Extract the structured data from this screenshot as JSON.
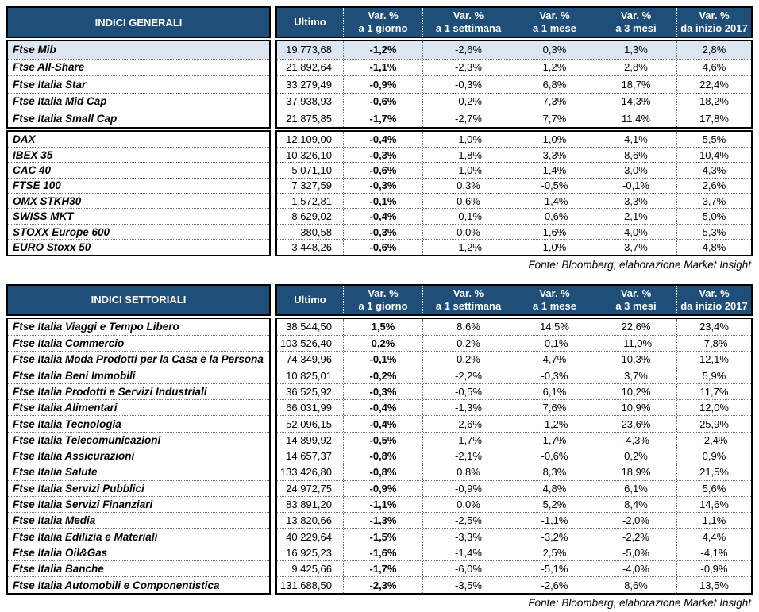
{
  "colors": {
    "header_bg": "#1F4E79",
    "header_text": "#FFFFFF",
    "highlight_row_bg": "#DCE6F1",
    "grid_dotted": "#6E6E6E",
    "border": "#000000"
  },
  "columns": {
    "ultimo_label": "Ultimo",
    "var_columns": [
      {
        "top": "Var. %",
        "bottom": "a 1 giorno"
      },
      {
        "top": "Var. %",
        "bottom": "a 1 settimana"
      },
      {
        "top": "Var. %",
        "bottom": "a 1 mese"
      },
      {
        "top": "Var. %",
        "bottom": "a 3 mesi"
      },
      {
        "top": "Var. %",
        "bottom": "da inizio 2017"
      }
    ]
  },
  "tables": [
    {
      "title": "INDICI GENERALI",
      "source": "Fonte: Bloomberg, elaborazione Market Insight",
      "groups": [
        {
          "rows": [
            {
              "name": "Ftse Mib",
              "ultimo": "19.773,68",
              "values": [
                "-1,2%",
                "-2,6%",
                "0,3%",
                "1,3%",
                "2,8%"
              ],
              "highlight": true
            },
            {
              "name": "Ftse All-Share",
              "ultimo": "21.892,64",
              "values": [
                "-1,1%",
                "-2,3%",
                "1,2%",
                "2,8%",
                "4,6%"
              ],
              "highlight": false
            },
            {
              "name": "Ftse Italia Star",
              "ultimo": "33.279,49",
              "values": [
                "-0,9%",
                "-0,3%",
                "6,8%",
                "18,7%",
                "22,4%"
              ],
              "highlight": false
            },
            {
              "name": "Ftse Italia Mid Cap",
              "ultimo": "37.938,93",
              "values": [
                "-0,6%",
                "-0,2%",
                "7,3%",
                "14,3%",
                "18,2%"
              ],
              "highlight": false
            },
            {
              "name": "Ftse Italia Small Cap",
              "ultimo": "21.875,85",
              "values": [
                "-1,7%",
                "-2,7%",
                "7,7%",
                "11,4%",
                "17,8%"
              ],
              "highlight": false
            }
          ]
        },
        {
          "rows": [
            {
              "name": "DAX",
              "ultimo": "12.109,00",
              "values": [
                "-0,4%",
                "-1,0%",
                "1,0%",
                "4,1%",
                "5,5%"
              ],
              "highlight": false
            },
            {
              "name": "IBEX 35",
              "ultimo": "10.326,10",
              "values": [
                "-0,3%",
                "-1,8%",
                "3,3%",
                "8,6%",
                "10,4%"
              ],
              "highlight": false
            },
            {
              "name": "CAC 40",
              "ultimo": "5.071,10",
              "values": [
                "-0,6%",
                "-1,0%",
                "1,4%",
                "3,0%",
                "4,3%"
              ],
              "highlight": false
            },
            {
              "name": "FTSE 100",
              "ultimo": "7.327,59",
              "values": [
                "-0,3%",
                "0,3%",
                "-0,5%",
                "-0,1%",
                "2,6%"
              ],
              "highlight": false
            },
            {
              "name": "OMX STKH30",
              "ultimo": "1.572,81",
              "values": [
                "-0,1%",
                "0,6%",
                "-1,4%",
                "3,3%",
                "3,7%"
              ],
              "highlight": false
            },
            {
              "name": "SWISS MKT",
              "ultimo": "8.629,02",
              "values": [
                "-0,4%",
                "-0,1%",
                "-0,6%",
                "2,1%",
                "5,0%"
              ],
              "highlight": false
            },
            {
              "name": "STOXX Europe 600",
              "ultimo": "380,58",
              "values": [
                "-0,3%",
                "0,0%",
                "1,6%",
                "4,0%",
                "5,3%"
              ],
              "highlight": false
            },
            {
              "name": "EURO Stoxx 50",
              "ultimo": "3.448,26",
              "values": [
                "-0,6%",
                "-1,2%",
                "1,0%",
                "3,7%",
                "4,8%"
              ],
              "highlight": false
            }
          ]
        }
      ]
    },
    {
      "title": "INDICI SETTORIALI",
      "source": "Fonte: Bloomberg, elaborazione Market Insight",
      "groups": [
        {
          "rows": [
            {
              "name": "Ftse Italia Viaggi e Tempo Libero",
              "ultimo": "38.544,50",
              "values": [
                "1,5%",
                "8,6%",
                "14,5%",
                "22,6%",
                "23,4%"
              ],
              "highlight": false
            },
            {
              "name": "Ftse Italia Commercio",
              "ultimo": "103.526,40",
              "values": [
                "0,2%",
                "0,2%",
                "-0,1%",
                "-11,0%",
                "-7,8%"
              ],
              "highlight": false
            },
            {
              "name": "Ftse Italia Moda Prodotti per la Casa e la Persona",
              "ultimo": "74.349,96",
              "values": [
                "-0,1%",
                "0,2%",
                "4,7%",
                "10,3%",
                "12,1%"
              ],
              "highlight": false
            },
            {
              "name": "Ftse Italia Beni Immobili",
              "ultimo": "10.825,01",
              "values": [
                "-0,2%",
                "-2,2%",
                "-0,3%",
                "3,7%",
                "5,9%"
              ],
              "highlight": false
            },
            {
              "name": "Ftse Italia Prodotti e Servizi Industriali",
              "ultimo": "36.525,92",
              "values": [
                "-0,3%",
                "-0,5%",
                "6,1%",
                "10,2%",
                "11,7%"
              ],
              "highlight": false
            },
            {
              "name": "Ftse Italia Alimentari",
              "ultimo": "66.031,99",
              "values": [
                "-0,4%",
                "-1,3%",
                "7,6%",
                "10,9%",
                "12,0%"
              ],
              "highlight": false
            },
            {
              "name": "Ftse Italia Tecnologia",
              "ultimo": "52.096,15",
              "values": [
                "-0,4%",
                "-2,6%",
                "-1,2%",
                "23,6%",
                "25,9%"
              ],
              "highlight": false
            },
            {
              "name": "Ftse Italia Telecomunicazioni",
              "ultimo": "14.899,92",
              "values": [
                "-0,5%",
                "-1,7%",
                "1,7%",
                "-4,3%",
                "-2,4%"
              ],
              "highlight": false
            },
            {
              "name": "Ftse Italia Assicurazioni",
              "ultimo": "14.657,37",
              "values": [
                "-0,8%",
                "-2,1%",
                "-0,6%",
                "0,2%",
                "0,9%"
              ],
              "highlight": false
            },
            {
              "name": "Ftse Italia Salute",
              "ultimo": "133.426,80",
              "values": [
                "-0,8%",
                "0,8%",
                "8,3%",
                "18,9%",
                "21,5%"
              ],
              "highlight": false
            },
            {
              "name": "Ftse Italia Servizi Pubblici",
              "ultimo": "24.972,75",
              "values": [
                "-0,9%",
                "-0,9%",
                "4,8%",
                "6,1%",
                "5,6%"
              ],
              "highlight": false
            },
            {
              "name": "Ftse Italia Servizi Finanziari",
              "ultimo": "83.891,20",
              "values": [
                "-1,1%",
                "0,0%",
                "5,2%",
                "8,4%",
                "14,6%"
              ],
              "highlight": false
            },
            {
              "name": "Ftse Italia Media",
              "ultimo": "13.820,66",
              "values": [
                "-1,3%",
                "-2,5%",
                "-1,1%",
                "-2,0%",
                "1,1%"
              ],
              "highlight": false
            },
            {
              "name": "Ftse Italia Edilizia e Materiali",
              "ultimo": "40.229,64",
              "values": [
                "-1,5%",
                "-3,3%",
                "-3,2%",
                "-2,2%",
                "4,4%"
              ],
              "highlight": false
            },
            {
              "name": "Ftse Italia Oil&Gas",
              "ultimo": "16.925,23",
              "values": [
                "-1,6%",
                "-1,4%",
                "2,5%",
                "-5,0%",
                "-4,1%"
              ],
              "highlight": false
            },
            {
              "name": "Ftse Italia Banche",
              "ultimo": "9.425,66",
              "values": [
                "-1,7%",
                "-6,0%",
                "-5,1%",
                "-4,0%",
                "-0,9%"
              ],
              "highlight": false
            },
            {
              "name": "Ftse Italia Automobili e Componentistica",
              "ultimo": "131.688,50",
              "values": [
                "-2,3%",
                "-3,5%",
                "-2,6%",
                "8,6%",
                "13,5%"
              ],
              "highlight": false
            }
          ]
        }
      ]
    }
  ]
}
